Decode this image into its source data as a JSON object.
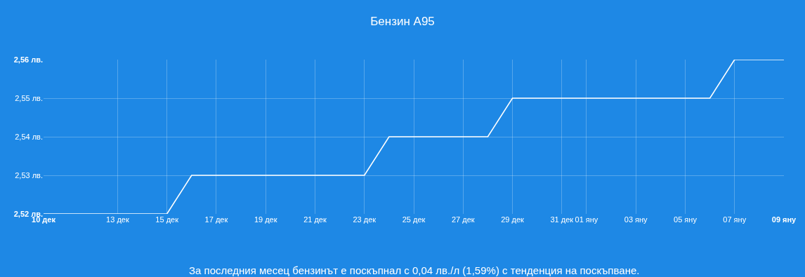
{
  "chart_data": {
    "type": "line",
    "title": "Бензин А95",
    "categories": [
      "10 дек",
      null,
      null,
      "13 дек",
      null,
      "15 дек",
      null,
      "17 дек",
      null,
      "19 дек",
      null,
      "21 дек",
      null,
      "23 дек",
      null,
      "25 дек",
      null,
      "27 дек",
      null,
      "29 дек",
      null,
      "31 дек",
      "01 яну",
      null,
      "03 яну",
      null,
      "05 яну",
      null,
      "07 яну",
      null,
      "09 яну"
    ],
    "series": [
      {
        "color": "#ffffff",
        "values": [
          2.52,
          2.52,
          2.52,
          2.52,
          2.52,
          2.52,
          2.53,
          2.53,
          2.53,
          2.53,
          2.53,
          2.53,
          2.53,
          2.53,
          2.54,
          2.54,
          2.54,
          2.54,
          2.54,
          2.55,
          2.55,
          2.55,
          2.55,
          2.55,
          2.55,
          2.55,
          2.55,
          2.55,
          2.56,
          2.56,
          2.56
        ]
      }
    ],
    "ylim": [
      2.52,
      2.56
    ],
    "yticks": [
      {
        "value": 2.52,
        "label": "2,52 лв."
      },
      {
        "value": 2.53,
        "label": "2,53 лв."
      },
      {
        "value": 2.54,
        "label": "2,54 лв."
      },
      {
        "value": 2.55,
        "label": "2,55 лв."
      },
      {
        "value": 2.56,
        "label": "2,56 лв."
      }
    ],
    "grid": true,
    "marker": "none",
    "line_style": "solid",
    "annotations": [
      "За последния месец бензинът е поскъпнал с 0,04 лв./л (1,59%) с тенденция на поскъпване."
    ]
  }
}
